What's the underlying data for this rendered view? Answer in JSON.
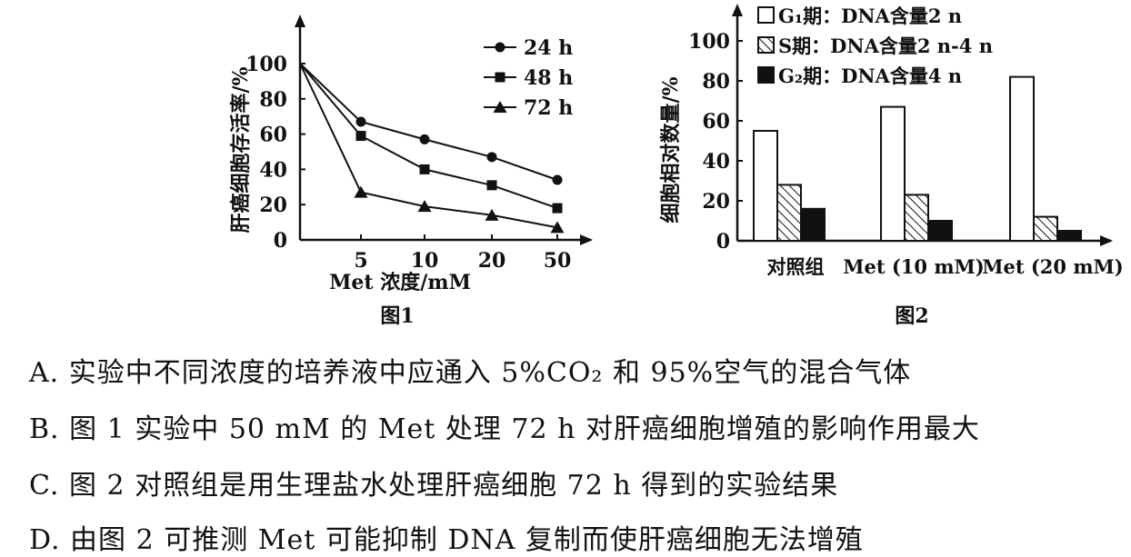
{
  "figure1": {
    "caption": "图1",
    "ylabel": "肝癌细胞存活率/%",
    "xlabel": "Met 浓度/mM",
    "yticks": [
      "0",
      "20",
      "40",
      "60",
      "80",
      "100"
    ],
    "xticks": [
      "5",
      "10",
      "20",
      "50"
    ],
    "chart_data": {
      "type": "line",
      "categories": [
        "0",
        "5",
        "10",
        "20",
        "50"
      ],
      "series": [
        {
          "name": "24 h",
          "marker": "circle",
          "values": [
            100,
            67,
            57,
            47,
            34
          ]
        },
        {
          "name": "48 h",
          "marker": "square",
          "values": [
            100,
            59,
            40,
            31,
            18
          ]
        },
        {
          "name": "72 h",
          "marker": "triangle",
          "values": [
            100,
            27,
            19,
            14,
            7
          ]
        }
      ],
      "ylim": [
        0,
        100
      ],
      "ylabel": "肝癌细胞存活率/%",
      "xlabel": "Met 浓度/mM",
      "legend": "top-right",
      "grid": false
    }
  },
  "figure2": {
    "caption": "图2",
    "ylabel": "细胞相对数量/%",
    "yticks": [
      "0",
      "20",
      "40",
      "60",
      "80",
      "100"
    ],
    "chart_data": {
      "type": "bar",
      "categories": [
        "对照组",
        "Met (10 mM)",
        "Met (20 mM)"
      ],
      "series": [
        {
          "name": "G₁期：DNA含量2 n",
          "fill": "white",
          "values": [
            55,
            67,
            82
          ]
        },
        {
          "name": "S期：DNA含量2 n-4 n",
          "fill": "hatched",
          "values": [
            28,
            23,
            12
          ]
        },
        {
          "name": "G₂期：DNA含量4 n",
          "fill": "black",
          "values": [
            16,
            10,
            5
          ]
        }
      ],
      "ylim": [
        0,
        100
      ],
      "ylabel": "细胞相对数量/%",
      "legend": "top",
      "grid": false
    }
  },
  "options": [
    "A. 实验中不同浓度的培养液中应通入 5%CO₂ 和 95%空气的混合气体",
    "B. 图 1 实验中 50 mM 的 Met 处理 72 h 对肝癌细胞增殖的影响作用最大",
    "C. 图 2 对照组是用生理盐水处理肝癌细胞 72 h 得到的实验结果",
    "D. 由图 2 可推测 Met 可能抑制 DNA 复制而使肝癌细胞无法增殖"
  ]
}
